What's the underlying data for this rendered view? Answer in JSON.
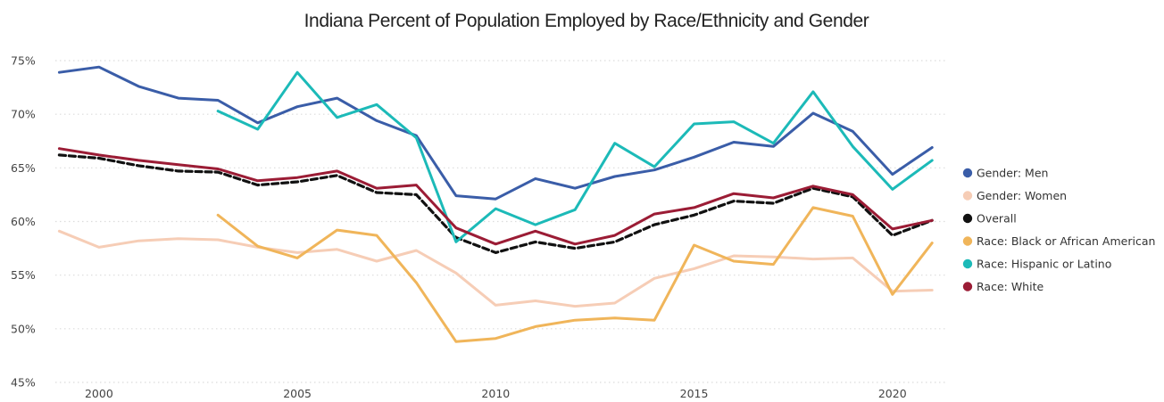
{
  "chart_data": {
    "type": "line",
    "title": "Indiana Percent of Population Employed by Race/Ethnicity and Gender",
    "xlabel": "",
    "ylabel": "",
    "xlim": [
      1998.9,
      2021.4
    ],
    "ylim": [
      45,
      75
    ],
    "x_ticks": [
      2000,
      2005,
      2010,
      2015,
      2020
    ],
    "y_ticks": [
      45,
      50,
      55,
      60,
      65,
      70,
      75
    ],
    "y_tick_labels": [
      "45%",
      "50%",
      "55%",
      "60%",
      "65%",
      "70%",
      "75%"
    ],
    "grid": "horizontal-dotted",
    "legend_position": "right",
    "series": [
      {
        "name": "Gender: Men",
        "color": "#3a5da8",
        "dash": false,
        "x": [
          1999,
          2000,
          2001,
          2002,
          2003,
          2004,
          2005,
          2006,
          2007,
          2008,
          2009,
          2010,
          2011,
          2012,
          2013,
          2014,
          2015,
          2016,
          2017,
          2018,
          2019,
          2020,
          2021
        ],
        "y": [
          73.9,
          74.4,
          72.6,
          71.5,
          71.3,
          69.2,
          70.7,
          71.5,
          69.4,
          68.0,
          62.4,
          62.1,
          64.0,
          63.1,
          64.2,
          64.8,
          66.0,
          67.4,
          67.0,
          70.1,
          68.4,
          64.4,
          66.9
        ]
      },
      {
        "name": "Gender: Women",
        "color": "#f6cdb6",
        "dash": false,
        "x": [
          1999,
          2000,
          2001,
          2002,
          2003,
          2004,
          2005,
          2006,
          2007,
          2008,
          2009,
          2010,
          2011,
          2012,
          2013,
          2014,
          2015,
          2016,
          2017,
          2018,
          2019,
          2020,
          2021
        ],
        "y": [
          59.1,
          57.6,
          58.2,
          58.4,
          58.3,
          57.6,
          57.1,
          57.4,
          56.3,
          57.3,
          55.2,
          52.2,
          52.6,
          52.1,
          52.4,
          54.7,
          55.6,
          56.8,
          56.7,
          56.5,
          56.6,
          53.5,
          53.6
        ]
      },
      {
        "name": "Overall",
        "color": "#111111",
        "dash": true,
        "x": [
          1999,
          2000,
          2001,
          2002,
          2003,
          2004,
          2005,
          2006,
          2007,
          2008,
          2009,
          2010,
          2011,
          2012,
          2013,
          2014,
          2015,
          2016,
          2017,
          2018,
          2019,
          2020,
          2021
        ],
        "y": [
          66.2,
          65.9,
          65.2,
          64.7,
          64.6,
          63.4,
          63.7,
          64.3,
          62.7,
          62.5,
          58.5,
          57.1,
          58.1,
          57.5,
          58.1,
          59.7,
          60.6,
          61.9,
          61.7,
          63.1,
          62.3,
          58.7,
          60.1
        ]
      },
      {
        "name": "Race:  Black or African American",
        "color": "#f0b55a",
        "dash": false,
        "x": [
          2003,
          2004,
          2005,
          2006,
          2007,
          2008,
          2009,
          2010,
          2011,
          2012,
          2013,
          2014,
          2015,
          2016,
          2017,
          2018,
          2019,
          2020,
          2021
        ],
        "y": [
          60.6,
          57.7,
          56.6,
          59.2,
          58.7,
          54.3,
          48.8,
          49.1,
          50.2,
          50.8,
          51.0,
          50.8,
          57.8,
          56.3,
          56.0,
          61.3,
          60.5,
          53.2,
          58.0
        ]
      },
      {
        "name": "Race:  Hispanic or Latino",
        "color": "#1cbab8",
        "dash": false,
        "x": [
          2003,
          2004,
          2005,
          2006,
          2007,
          2008,
          2009,
          2010,
          2011,
          2012,
          2013,
          2014,
          2015,
          2016,
          2017,
          2018,
          2019,
          2020,
          2021
        ],
        "y": [
          70.3,
          68.6,
          73.9,
          69.7,
          70.9,
          67.8,
          58.1,
          61.2,
          59.7,
          61.1,
          67.3,
          65.1,
          69.1,
          69.3,
          67.3,
          72.1,
          67.0,
          63.0,
          65.7
        ]
      },
      {
        "name": "Race: White",
        "color": "#9b1c35",
        "dash": false,
        "x": [
          1999,
          2000,
          2001,
          2002,
          2003,
          2004,
          2005,
          2006,
          2007,
          2008,
          2009,
          2010,
          2011,
          2012,
          2013,
          2014,
          2015,
          2016,
          2017,
          2018,
          2019,
          2020,
          2021
        ],
        "y": [
          66.8,
          66.2,
          65.7,
          65.3,
          64.9,
          63.8,
          64.1,
          64.7,
          63.1,
          63.4,
          59.4,
          57.9,
          59.1,
          57.9,
          58.7,
          60.7,
          61.3,
          62.6,
          62.2,
          63.3,
          62.5,
          59.3,
          60.1
        ]
      }
    ]
  }
}
